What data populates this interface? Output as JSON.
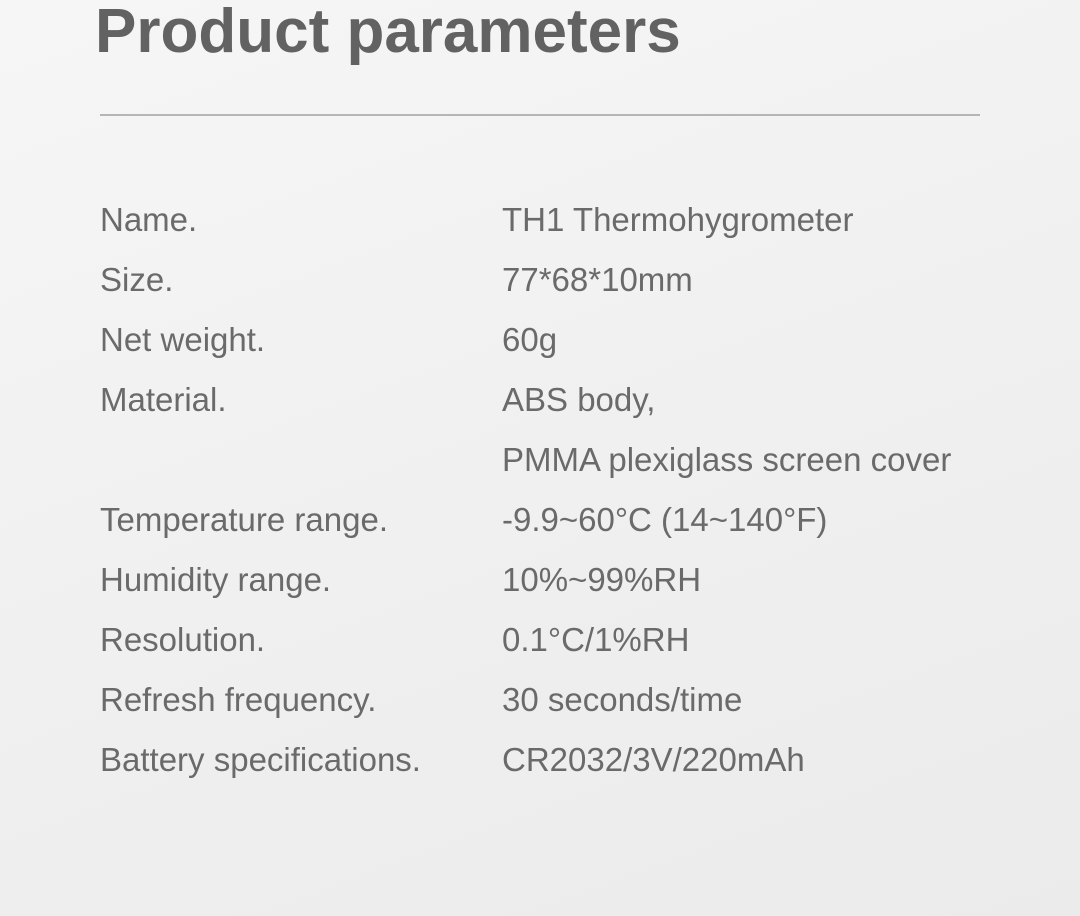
{
  "title": "Product parameters",
  "rows": [
    {
      "label": "Name.",
      "value": "TH1 Thermohygrometer"
    },
    {
      "label": "Size.",
      "value": "77*68*10mm"
    },
    {
      "label": "Net weight.",
      "value": "60g"
    },
    {
      "label": "Material.",
      "value": "ABS body,"
    },
    {
      "label": "",
      "value": "PMMA plexiglass screen cover"
    },
    {
      "label": "Temperature range.",
      "value": "-9.9~60°C (14~140°F)"
    },
    {
      "label": "Humidity range.",
      "value": "10%~99%RH"
    },
    {
      "label": "Resolution.",
      "value": "0.1°C/1%RH"
    },
    {
      "label": "Refresh frequency.",
      "value": "30 seconds/time"
    },
    {
      "label": "Battery specifications.",
      "value": "CR2032/3V/220mAh"
    }
  ]
}
